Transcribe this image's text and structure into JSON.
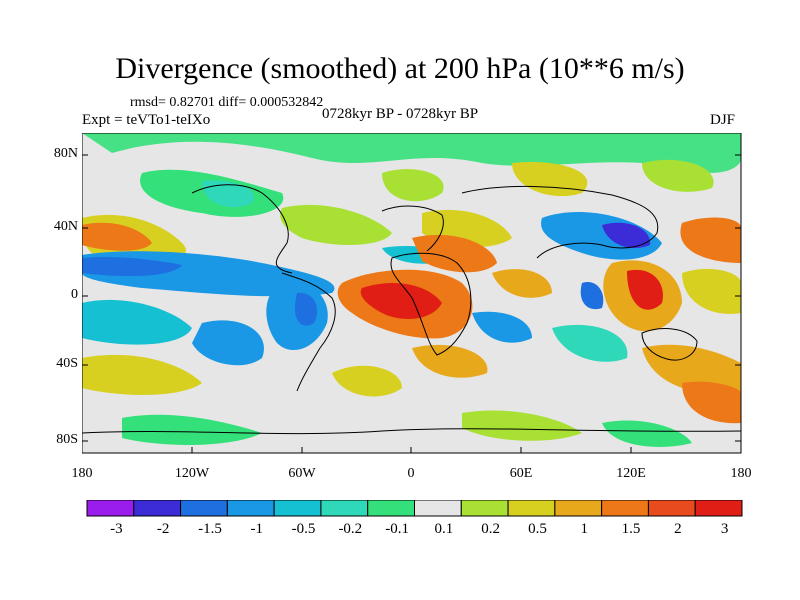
{
  "figure": {
    "title": "Divergence (smoothed) at 200 hPa (10**6 m/s)",
    "stats_text": "rmsd= 0.82701 diff= 0.000532842",
    "experiment_label": "Expt = teVTo1-teIXo",
    "period_label": "0728kyr BP - 0728kyr BP",
    "season_label": "DJF"
  },
  "axes": {
    "y_ticks": [
      "80N",
      "40N",
      "0",
      "40S",
      "80S"
    ],
    "x_ticks": [
      "180",
      "120W",
      "60W",
      "0",
      "60E",
      "120E",
      "180"
    ]
  },
  "colorbar": {
    "labels": [
      "-3",
      "-2",
      "-1.5",
      "-1",
      "-0.5",
      "-0.2",
      "-0.1",
      "0.1",
      "0.2",
      "0.5",
      "1",
      "1.5",
      "2",
      "3"
    ],
    "colors": [
      "#9b1dee",
      "#3c2cd8",
      "#1e6fe0",
      "#1a98e6",
      "#14c0d2",
      "#2ed8b8",
      "#34e07a",
      "#e6e6e6",
      "#a8e034",
      "#d8d020",
      "#e8a81c",
      "#ec7818",
      "#e84c1c",
      "#e01e16"
    ]
  },
  "colors": {
    "land_outline": "#000000",
    "background": "#ffffff"
  }
}
